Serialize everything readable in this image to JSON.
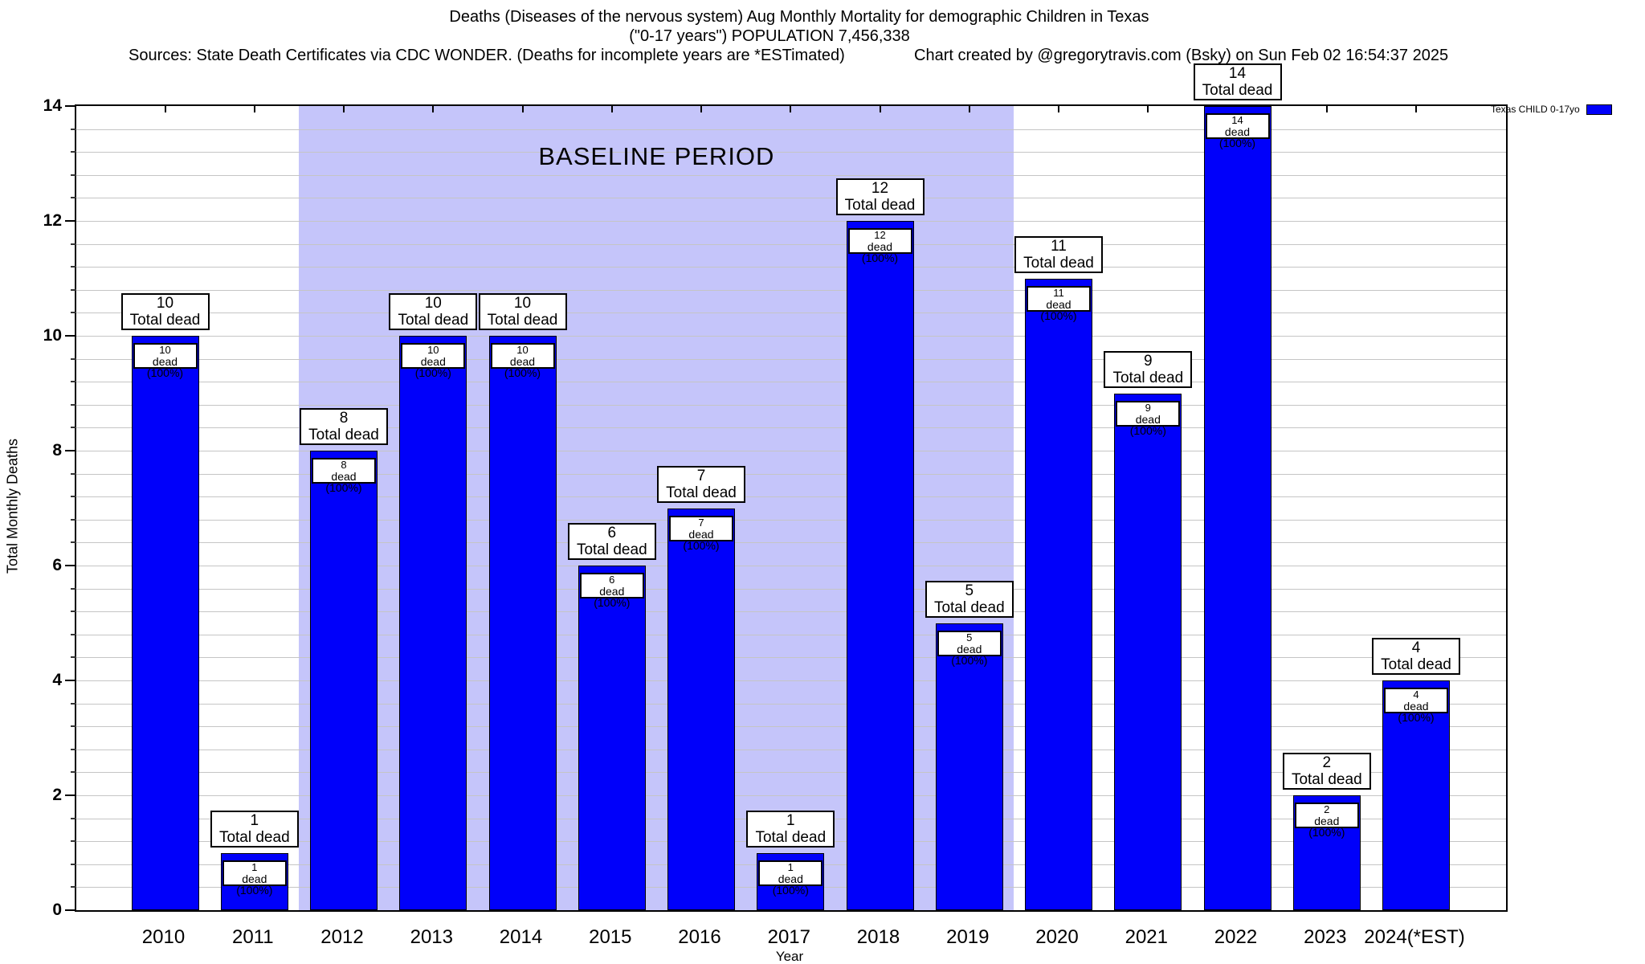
{
  "title": {
    "line1": "Deaths (Diseases of the nervous system) Aug Monthly Mortality for demographic Children in Texas",
    "line2": "(\"0-17 years\") POPULATION 7,456,338"
  },
  "sources": {
    "left": "Sources: State Death Certificates via CDC WONDER. (Deaths for incomplete years are *ESTimated)",
    "right": "Chart created by @gregorytravis.com (Bsky) on Sun Feb 02 16:54:37 2025"
  },
  "legend": {
    "label": "Texas CHILD 0-17yo",
    "swatch_color": "#0000fa"
  },
  "axes": {
    "y_label": "Total Monthly Deaths",
    "x_label": "Year",
    "y_ticks": [
      0,
      2,
      4,
      6,
      8,
      10,
      12,
      14
    ],
    "y_minor_step": 0.4,
    "ylim": [
      0,
      14
    ]
  },
  "annotations": {
    "baseline_label": "BASELINE PERIOD",
    "top_box_suffix": "Total dead",
    "inner_box_suffix": "dead (100%)"
  },
  "chart_data": {
    "type": "bar",
    "title": "Deaths (Diseases of the nervous system) Aug Monthly Mortality for demographic Children in Texas (\"0-17 years\") POPULATION 7,456,338",
    "xlabel": "Year",
    "ylabel": "Total Monthly Deaths",
    "ylim": [
      0,
      14
    ],
    "grid": "minor horizontal gridlines every 0.4",
    "legend_position": "top-right",
    "categories": [
      "2010",
      "2011",
      "2012",
      "2013",
      "2014",
      "2015",
      "2016",
      "2017",
      "2018",
      "2019",
      "2020",
      "2021",
      "2022",
      "2023",
      "2024(*EST)"
    ],
    "series": [
      {
        "name": "Texas CHILD 0-17yo",
        "color": "#0000fa",
        "values": [
          10,
          1,
          8,
          10,
          10,
          6,
          7,
          1,
          12,
          5,
          11,
          9,
          14,
          2,
          4
        ]
      }
    ],
    "bar_labels_top": [
      "10",
      "1",
      "8",
      "10",
      "10",
      "6",
      "7",
      "1",
      "12",
      "5",
      "11",
      "9",
      "14",
      "2",
      "4"
    ],
    "bar_labels_inner_percent": "100%",
    "baseline_period": {
      "label": "BASELINE PERIOD",
      "start_category": "2012",
      "end_category": "2019",
      "fill_color": "#c5c5fa"
    }
  }
}
